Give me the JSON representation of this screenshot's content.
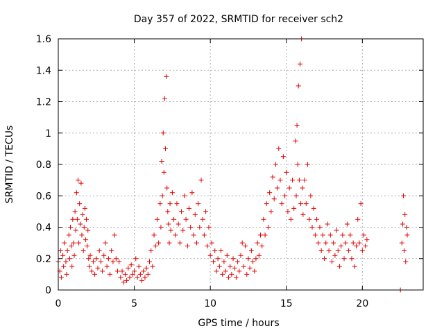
{
  "chart_data": {
    "type": "scatter",
    "title": "Day 357 of 2022, SRMTID for receiver sch2",
    "xlabel": "GPS time / hours",
    "ylabel": "SRMTID / TECUs",
    "xlim": [
      0,
      24
    ],
    "ylim": [
      0,
      1.6
    ],
    "xticks": [
      "0",
      "5",
      "10",
      "15",
      "20"
    ],
    "xtick_values": [
      0,
      5,
      10,
      15,
      20
    ],
    "yticks": [
      "0",
      "0.2",
      "0.4",
      "0.6",
      "0.8",
      "1",
      "1.2",
      "1.4",
      "1.6"
    ],
    "ytick_values": [
      0,
      0.2,
      0.4,
      0.6,
      0.8,
      1.0,
      1.2,
      1.4,
      1.6
    ],
    "grid": true,
    "marker": "+",
    "color": "#e00000",
    "series": [
      {
        "name": "sch2",
        "points": [
          [
            0.0,
            0.18
          ],
          [
            0.1,
            0.12
          ],
          [
            0.15,
            0.25
          ],
          [
            0.2,
            0.08
          ],
          [
            0.3,
            0.22
          ],
          [
            0.35,
            0.15
          ],
          [
            0.4,
            0.3
          ],
          [
            0.5,
            0.18
          ],
          [
            0.55,
            0.1
          ],
          [
            0.6,
            0.25
          ],
          [
            0.7,
            0.35
          ],
          [
            0.75,
            0.2
          ],
          [
            0.8,
            0.4
          ],
          [
            0.85,
            0.28
          ],
          [
            0.9,
            0.15
          ],
          [
            0.95,
            0.45
          ],
          [
            1.0,
            0.3
          ],
          [
            1.05,
            0.22
          ],
          [
            1.1,
            0.5
          ],
          [
            1.15,
            0.38
          ],
          [
            1.2,
            0.62
          ],
          [
            1.25,
            0.45
          ],
          [
            1.3,
            0.7
          ],
          [
            1.35,
            0.3
          ],
          [
            1.4,
            0.55
          ],
          [
            1.45,
            0.42
          ],
          [
            1.5,
            0.68
          ],
          [
            1.55,
            0.35
          ],
          [
            1.6,
            0.48
          ],
          [
            1.65,
            0.25
          ],
          [
            1.7,
            0.4
          ],
          [
            1.75,
            0.52
          ],
          [
            1.8,
            0.32
          ],
          [
            1.85,
            0.45
          ],
          [
            1.9,
            0.28
          ],
          [
            1.95,
            0.38
          ],
          [
            2.0,
            0.2
          ],
          [
            2.05,
            0.15
          ],
          [
            2.1,
            0.22
          ],
          [
            2.2,
            0.12
          ],
          [
            2.3,
            0.18
          ],
          [
            2.4,
            0.1
          ],
          [
            2.5,
            0.2
          ],
          [
            2.6,
            0.14
          ],
          [
            2.7,
            0.25
          ],
          [
            2.8,
            0.18
          ],
          [
            2.9,
            0.12
          ],
          [
            3.0,
            0.22
          ],
          [
            3.1,
            0.3
          ],
          [
            3.2,
            0.15
          ],
          [
            3.3,
            0.2
          ],
          [
            3.4,
            0.1
          ],
          [
            3.5,
            0.25
          ],
          [
            3.6,
            0.18
          ],
          [
            3.7,
            0.35
          ],
          [
            3.8,
            0.2
          ],
          [
            3.9,
            0.12
          ],
          [
            4.0,
            0.18
          ],
          [
            4.1,
            0.08
          ],
          [
            4.2,
            0.12
          ],
          [
            4.3,
            0.05
          ],
          [
            4.4,
            0.1
          ],
          [
            4.5,
            0.06
          ],
          [
            4.6,
            0.14
          ],
          [
            4.7,
            0.08
          ],
          [
            4.8,
            0.16
          ],
          [
            4.9,
            0.1
          ],
          [
            5.0,
            0.12
          ],
          [
            5.1,
            0.2
          ],
          [
            5.2,
            0.08
          ],
          [
            5.3,
            0.15
          ],
          [
            5.4,
            0.1
          ],
          [
            5.5,
            0.06
          ],
          [
            5.6,
            0.12
          ],
          [
            5.7,
            0.08
          ],
          [
            5.8,
            0.14
          ],
          [
            5.9,
            0.1
          ],
          [
            6.0,
            0.18
          ],
          [
            6.1,
            0.25
          ],
          [
            6.2,
            0.15
          ],
          [
            6.3,
            0.35
          ],
          [
            6.4,
            0.28
          ],
          [
            6.5,
            0.45
          ],
          [
            6.6,
            0.3
          ],
          [
            6.7,
            0.55
          ],
          [
            6.75,
            0.4
          ],
          [
            6.8,
            0.82
          ],
          [
            6.85,
            0.6
          ],
          [
            6.9,
            1.0
          ],
          [
            6.95,
            0.75
          ],
          [
            7.0,
            1.22
          ],
          [
            7.05,
            0.9
          ],
          [
            7.1,
            1.36
          ],
          [
            7.15,
            0.65
          ],
          [
            7.2,
            0.5
          ],
          [
            7.25,
            0.42
          ],
          [
            7.3,
            0.3
          ],
          [
            7.35,
            0.55
          ],
          [
            7.4,
            0.38
          ],
          [
            7.5,
            0.62
          ],
          [
            7.6,
            0.45
          ],
          [
            7.7,
            0.35
          ],
          [
            7.8,
            0.55
          ],
          [
            7.9,
            0.42
          ],
          [
            8.0,
            0.3
          ],
          [
            8.1,
            0.5
          ],
          [
            8.2,
            0.38
          ],
          [
            8.3,
            0.6
          ],
          [
            8.4,
            0.45
          ],
          [
            8.5,
            0.28
          ],
          [
            8.6,
            0.52
          ],
          [
            8.7,
            0.4
          ],
          [
            8.8,
            0.62
          ],
          [
            8.9,
            0.35
          ],
          [
            9.0,
            0.48
          ],
          [
            9.1,
            0.3
          ],
          [
            9.2,
            0.55
          ],
          [
            9.3,
            0.4
          ],
          [
            9.4,
            0.7
          ],
          [
            9.5,
            0.45
          ],
          [
            9.6,
            0.35
          ],
          [
            9.7,
            0.5
          ],
          [
            9.8,
            0.28
          ],
          [
            9.9,
            0.4
          ],
          [
            10.0,
            0.22
          ],
          [
            10.1,
            0.3
          ],
          [
            10.2,
            0.18
          ],
          [
            10.3,
            0.25
          ],
          [
            10.4,
            0.12
          ],
          [
            10.5,
            0.2
          ],
          [
            10.6,
            0.15
          ],
          [
            10.7,
            0.25
          ],
          [
            10.8,
            0.1
          ],
          [
            10.9,
            0.18
          ],
          [
            11.0,
            0.12
          ],
          [
            11.1,
            0.22
          ],
          [
            11.2,
            0.08
          ],
          [
            11.3,
            0.15
          ],
          [
            11.4,
            0.1
          ],
          [
            11.5,
            0.2
          ],
          [
            11.6,
            0.14
          ],
          [
            11.7,
            0.08
          ],
          [
            11.8,
            0.18
          ],
          [
            11.9,
            0.12
          ],
          [
            12.0,
            0.22
          ],
          [
            12.1,
            0.3
          ],
          [
            12.2,
            0.15
          ],
          [
            12.3,
            0.28
          ],
          [
            12.4,
            0.1
          ],
          [
            12.5,
            0.2
          ],
          [
            12.6,
            0.14
          ],
          [
            12.7,
            0.25
          ],
          [
            12.8,
            0.18
          ],
          [
            12.9,
            0.12
          ],
          [
            13.0,
            0.2
          ],
          [
            13.1,
            0.3
          ],
          [
            13.2,
            0.22
          ],
          [
            13.3,
            0.35
          ],
          [
            13.4,
            0.28
          ],
          [
            13.5,
            0.45
          ],
          [
            13.6,
            0.35
          ],
          [
            13.7,
            0.55
          ],
          [
            13.8,
            0.4
          ],
          [
            13.9,
            0.62
          ],
          [
            14.0,
            0.5
          ],
          [
            14.1,
            0.72
          ],
          [
            14.2,
            0.58
          ],
          [
            14.3,
            0.8
          ],
          [
            14.4,
            0.65
          ],
          [
            14.5,
            0.9
          ],
          [
            14.6,
            0.7
          ],
          [
            14.7,
            0.55
          ],
          [
            14.8,
            0.85
          ],
          [
            14.9,
            0.6
          ],
          [
            15.0,
            0.75
          ],
          [
            15.1,
            0.5
          ],
          [
            15.2,
            0.65
          ],
          [
            15.3,
            0.45
          ],
          [
            15.4,
            0.7
          ],
          [
            15.5,
            0.52
          ],
          [
            15.6,
            0.95
          ],
          [
            15.65,
            0.6
          ],
          [
            15.7,
            1.05
          ],
          [
            15.75,
            0.8
          ],
          [
            15.8,
            1.3
          ],
          [
            15.85,
            0.7
          ],
          [
            15.9,
            1.44
          ],
          [
            15.95,
            0.55
          ],
          [
            16.0,
            1.6
          ],
          [
            16.05,
            0.65
          ],
          [
            16.1,
            0.48
          ],
          [
            16.2,
            0.7
          ],
          [
            16.3,
            0.55
          ],
          [
            16.4,
            0.8
          ],
          [
            16.5,
            0.45
          ],
          [
            16.6,
            0.6
          ],
          [
            16.7,
            0.4
          ],
          [
            16.8,
            0.52
          ],
          [
            16.9,
            0.35
          ],
          [
            17.0,
            0.45
          ],
          [
            17.1,
            0.3
          ],
          [
            17.2,
            0.4
          ],
          [
            17.3,
            0.25
          ],
          [
            17.4,
            0.35
          ],
          [
            17.5,
            0.2
          ],
          [
            17.6,
            0.3
          ],
          [
            17.7,
            0.42
          ],
          [
            17.8,
            0.25
          ],
          [
            17.9,
            0.35
          ],
          [
            18.0,
            0.18
          ],
          [
            18.1,
            0.3
          ],
          [
            18.2,
            0.22
          ],
          [
            18.3,
            0.38
          ],
          [
            18.4,
            0.25
          ],
          [
            18.5,
            0.15
          ],
          [
            18.6,
            0.28
          ],
          [
            18.7,
            0.35
          ],
          [
            18.8,
            0.2
          ],
          [
            18.9,
            0.3
          ],
          [
            19.0,
            0.42
          ],
          [
            19.1,
            0.25
          ],
          [
            19.2,
            0.35
          ],
          [
            19.3,
            0.2
          ],
          [
            19.4,
            0.3
          ],
          [
            19.5,
            0.15
          ],
          [
            19.6,
            0.28
          ],
          [
            19.7,
            0.45
          ],
          [
            19.8,
            0.3
          ],
          [
            19.9,
            0.55
          ],
          [
            20.0,
            0.25
          ],
          [
            20.1,
            0.35
          ],
          [
            20.2,
            0.28
          ],
          [
            20.3,
            0.32
          ],
          [
            22.5,
            0.0
          ],
          [
            22.6,
            0.3
          ],
          [
            22.65,
            0.42
          ],
          [
            22.7,
            0.6
          ],
          [
            22.75,
            0.25
          ],
          [
            22.8,
            0.48
          ],
          [
            22.85,
            0.18
          ],
          [
            22.9,
            0.4
          ],
          [
            22.95,
            0.35
          ]
        ]
      }
    ]
  }
}
